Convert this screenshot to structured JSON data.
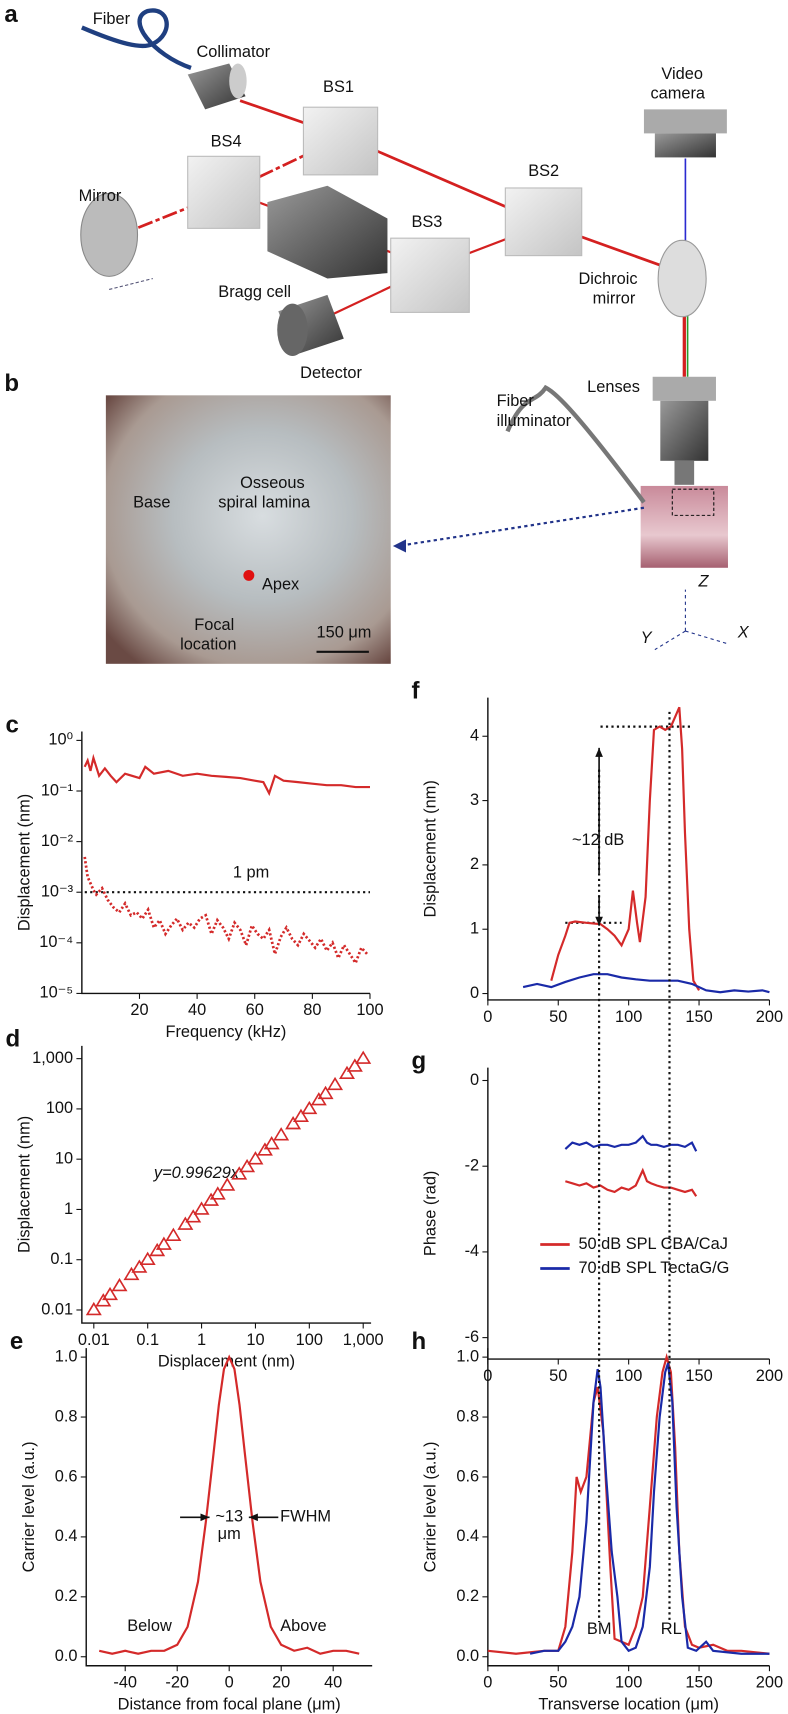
{
  "diagram": {
    "panels": [
      "a",
      "b"
    ],
    "labels": [
      "Fiber",
      "Collimator",
      "BS1",
      "BS4",
      "BS2",
      "BS3",
      "Mirror",
      "Bragg cell",
      "Detector",
      "Video",
      "camera",
      "Dichroic",
      "mirror",
      "Lenses",
      "Fiber",
      "illuminator",
      "Base",
      "Osseous",
      "spiral lamina",
      "Apex",
      "Focal",
      "location",
      "150 μm",
      "Z",
      "Y",
      "X"
    ]
  },
  "chart_data": [
    {
      "panel": "c",
      "type": "line",
      "xlabel": "Frequency (kHz)",
      "ylabel": "Displacement (nm)",
      "ylog": true,
      "xlim": [
        0,
        100
      ],
      "ylim": [
        1e-05,
        1.5
      ],
      "xticks": [
        20,
        40,
        60,
        80,
        100
      ],
      "yticks": [
        {
          "value": 1,
          "label": "10⁰"
        },
        {
          "value": 0.1,
          "label": "10⁻¹"
        },
        {
          "value": 0.01,
          "label": "10⁻²"
        },
        {
          "value": 0.001,
          "label": "10⁻³"
        },
        {
          "value": 0.0001,
          "label": "10⁻⁴"
        },
        {
          "value": 1e-05,
          "label": "10⁻⁵"
        }
      ],
      "annotations": [
        "1 pm"
      ],
      "hlines": [
        0.001
      ],
      "series": [
        {
          "color": "#d42a2a",
          "dotted": false,
          "x": [
            1,
            2,
            3,
            4,
            5,
            6,
            8,
            10,
            12,
            15,
            20,
            22,
            25,
            30,
            35,
            40,
            45,
            50,
            55,
            60,
            63,
            65,
            67,
            70,
            75,
            80,
            85,
            90,
            95,
            100
          ],
          "values": [
            0.3,
            0.4,
            0.25,
            0.45,
            0.3,
            0.2,
            0.28,
            0.2,
            0.15,
            0.22,
            0.18,
            0.3,
            0.22,
            0.25,
            0.2,
            0.22,
            0.2,
            0.19,
            0.18,
            0.16,
            0.15,
            0.09,
            0.2,
            0.16,
            0.15,
            0.14,
            0.13,
            0.13,
            0.12,
            0.12
          ]
        },
        {
          "color": "#d42a2a",
          "dotted": true,
          "x": [
            1,
            2,
            3,
            4,
            5,
            7,
            9,
            11,
            13,
            15,
            17,
            19,
            21,
            23,
            25,
            27,
            29,
            31,
            33,
            35,
            37,
            39,
            41,
            43,
            45,
            47,
            49,
            51,
            53,
            55,
            57,
            59,
            61,
            63,
            65,
            67,
            69,
            71,
            73,
            75,
            77,
            79,
            81,
            83,
            85,
            87,
            89,
            91,
            93,
            95,
            97,
            99
          ],
          "values": [
            0.005,
            0.002,
            0.0015,
            0.0011,
            0.0009,
            0.0012,
            0.0007,
            0.0005,
            0.0004,
            0.0006,
            0.00035,
            0.0004,
            0.0003,
            0.00045,
            0.0002,
            0.00028,
            0.00015,
            0.00022,
            0.0003,
            0.00018,
            0.00025,
            0.0002,
            0.0003,
            0.00035,
            0.00015,
            0.00028,
            0.0002,
            0.00012,
            0.00025,
            0.00018,
            9e-05,
            0.00022,
            0.00015,
            0.00012,
            0.00018,
            6e-05,
            0.00013,
            0.0002,
            0.00012,
            9e-05,
            0.00015,
            0.00011,
            8e-05,
            0.00012,
            7e-05,
            0.0001,
            5e-05,
            9e-05,
            6e-05,
            4e-05,
            8e-05,
            6e-05
          ]
        }
      ]
    },
    {
      "panel": "d",
      "type": "scatter",
      "xlabel": "Displacement (nm)",
      "ylabel": "Displacement (nm)",
      "xlog": true,
      "ylog": true,
      "xlim": [
        0.006,
        1400
      ],
      "ylim": [
        0.0055,
        1800
      ],
      "xticks": [
        0.01,
        0.1,
        1,
        10,
        100,
        {
          "value": 1000,
          "label": "1,000"
        }
      ],
      "yticks": [
        {
          "value": 1000,
          "label": "1,000"
        },
        100,
        10,
        1,
        0.1,
        0.01
      ],
      "annotations": [
        "y=0.99629x"
      ],
      "series": [
        {
          "color": "#d42a2a",
          "marker": "triangle",
          "x": [
            0.01,
            0.015,
            0.02,
            0.03,
            0.05,
            0.07,
            0.1,
            0.15,
            0.2,
            0.3,
            0.5,
            0.7,
            1,
            1.5,
            2,
            3,
            5,
            7,
            10,
            15,
            20,
            30,
            50,
            70,
            100,
            150,
            200,
            300,
            500,
            700,
            1000
          ],
          "values": [
            0.00996,
            0.0149,
            0.0199,
            0.0299,
            0.0498,
            0.0697,
            0.0996,
            0.149,
            0.199,
            0.299,
            0.498,
            0.697,
            0.996,
            1.49,
            1.99,
            2.99,
            4.98,
            6.97,
            9.96,
            14.9,
            19.9,
            29.9,
            49.8,
            69.7,
            99.6,
            149,
            199,
            299,
            498,
            697,
            996
          ]
        }
      ]
    },
    {
      "panel": "e",
      "type": "line",
      "xlabel": "Distance from focal plane (μm)",
      "ylabel": "Carrier level (a.u.)",
      "xlim": [
        -55,
        55
      ],
      "ylim": [
        -0.03,
        1.03
      ],
      "xticks": [
        -40,
        -20,
        0,
        20,
        40
      ],
      "yticks": [
        {
          "value": 1,
          "label": "1.0"
        },
        0.8,
        0.6,
        0.4,
        0.2,
        {
          "value": 0,
          "label": "0.0"
        }
      ],
      "annotations": [
        "~13",
        "μm",
        "FWHM",
        "Below",
        "Above"
      ],
      "series": [
        {
          "color": "#d42a2a",
          "x": [
            -50,
            -45,
            -40,
            -35,
            -30,
            -25,
            -20,
            -16,
            -12,
            -9,
            -6,
            -4,
            -2,
            0,
            2,
            4,
            6,
            9,
            12,
            16,
            20,
            25,
            30,
            35,
            40,
            45,
            50
          ],
          "values": [
            0.02,
            0.01,
            0.02,
            0.01,
            0.02,
            0.02,
            0.04,
            0.1,
            0.25,
            0.45,
            0.68,
            0.84,
            0.96,
            1.0,
            0.96,
            0.84,
            0.68,
            0.45,
            0.25,
            0.1,
            0.04,
            0.02,
            0.03,
            0.01,
            0.02,
            0.02,
            0.01
          ]
        }
      ]
    },
    {
      "panel": "f",
      "type": "line",
      "ylabel": "Displacement (nm)",
      "xlim": [
        0,
        200
      ],
      "ylim": [
        -0.1,
        4.6
      ],
      "xticks": [
        0,
        50,
        100,
        150,
        200
      ],
      "yticks": [
        0,
        1,
        2,
        3,
        4
      ],
      "annotations": [
        "~12 dB"
      ],
      "hlines": [
        4.15,
        1.1
      ],
      "vlines": [
        79,
        129
      ],
      "series": [
        {
          "color": "#d42a2a",
          "x": [
            45,
            50,
            55,
            58,
            62,
            70,
            80,
            85,
            90,
            95,
            100,
            103,
            106,
            108,
            112,
            115,
            118,
            122,
            126,
            130,
            133,
            136,
            138,
            140,
            143,
            146,
            150
          ],
          "values": [
            0.2,
            0.6,
            0.9,
            1.1,
            1.12,
            1.1,
            1.08,
            1.0,
            0.9,
            0.75,
            1.0,
            1.6,
            1.1,
            0.8,
            1.5,
            3.0,
            4.1,
            4.15,
            4.1,
            4.15,
            4.3,
            4.45,
            3.8,
            2.5,
            1.0,
            0.2,
            0.05
          ]
        },
        {
          "color": "#1a2aa8",
          "x": [
            25,
            35,
            45,
            55,
            65,
            75,
            85,
            95,
            105,
            115,
            125,
            135,
            145,
            155,
            165,
            175,
            185,
            195,
            200
          ],
          "values": [
            0.1,
            0.15,
            0.1,
            0.18,
            0.25,
            0.3,
            0.3,
            0.25,
            0.22,
            0.2,
            0.2,
            0.2,
            0.15,
            0.05,
            0.02,
            0.05,
            0.03,
            0.05,
            0.02
          ]
        }
      ]
    },
    {
      "panel": "g",
      "type": "line",
      "ylabel": "Phase (rad)",
      "legend": "lower-center",
      "xlim": [
        0,
        200
      ],
      "ylim": [
        -6.5,
        0.3
      ],
      "xticks": [
        0,
        50,
        100,
        150,
        200
      ],
      "yticks": [
        0,
        -2,
        -4,
        -6
      ],
      "series": [
        {
          "name": "50 dB SPL CBA/CaJ",
          "color": "#d42a2a",
          "x": [
            55,
            60,
            65,
            70,
            75,
            80,
            85,
            90,
            95,
            100,
            105,
            110,
            113,
            116,
            120,
            125,
            130,
            135,
            140,
            145,
            148
          ],
          "values": [
            -2.35,
            -2.4,
            -2.45,
            -2.4,
            -2.5,
            -2.45,
            -2.55,
            -2.6,
            -2.5,
            -2.55,
            -2.45,
            -2.1,
            -2.35,
            -2.4,
            -2.45,
            -2.5,
            -2.5,
            -2.55,
            -2.6,
            -2.55,
            -2.7
          ]
        },
        {
          "name": "70 dB SPL TectaG/G",
          "color": "#1a2aa8",
          "x": [
            55,
            60,
            65,
            70,
            75,
            80,
            85,
            90,
            95,
            100,
            105,
            110,
            113,
            116,
            120,
            125,
            130,
            135,
            140,
            145,
            148
          ],
          "values": [
            -1.6,
            -1.45,
            -1.5,
            -1.45,
            -1.55,
            -1.5,
            -1.5,
            -1.55,
            -1.5,
            -1.5,
            -1.45,
            -1.3,
            -1.45,
            -1.5,
            -1.5,
            -1.55,
            -1.5,
            -1.5,
            -1.55,
            -1.45,
            -1.65
          ]
        }
      ]
    },
    {
      "panel": "h",
      "type": "line",
      "xlabel": "Transverse location (μm)",
      "ylabel": "Carrier level (a.u.)",
      "xlim": [
        0,
        200
      ],
      "ylim": [
        -0.03,
        1.03
      ],
      "xticks": [
        0,
        50,
        100,
        150,
        200
      ],
      "yticks": [
        {
          "value": 1,
          "label": "1.0"
        },
        0.8,
        0.6,
        0.4,
        0.2,
        {
          "value": 0,
          "label": "0.0"
        }
      ],
      "annotations": [
        "BM",
        "RL"
      ],
      "series": [
        {
          "color": "#d42a2a",
          "x": [
            0,
            20,
            40,
            50,
            55,
            60,
            63,
            66,
            70,
            75,
            78,
            82,
            87,
            90,
            95,
            100,
            105,
            110,
            115,
            120,
            124,
            127,
            130,
            133,
            136,
            140,
            145,
            150,
            160,
            170,
            180,
            200
          ],
          "values": [
            0.02,
            0.01,
            0.02,
            0.02,
            0.1,
            0.35,
            0.6,
            0.55,
            0.6,
            0.85,
            0.9,
            0.75,
            0.3,
            0.06,
            0.05,
            0.04,
            0.1,
            0.2,
            0.5,
            0.8,
            0.95,
            1.0,
            0.95,
            0.7,
            0.35,
            0.1,
            0.04,
            0.03,
            0.04,
            0.02,
            0.02,
            0.01
          ]
        },
        {
          "color": "#1a2aa8",
          "x": [
            30,
            40,
            50,
            55,
            60,
            65,
            70,
            75,
            78,
            80,
            84,
            88,
            92,
            95,
            100,
            105,
            110,
            115,
            118,
            122,
            126,
            128,
            131,
            134,
            138,
            142,
            148,
            155,
            160,
            180,
            200
          ],
          "values": [
            0.01,
            0.02,
            0.02,
            0.05,
            0.1,
            0.2,
            0.45,
            0.85,
            0.96,
            0.9,
            0.6,
            0.35,
            0.2,
            0.05,
            0.02,
            0.03,
            0.1,
            0.3,
            0.55,
            0.8,
            0.95,
            0.98,
            0.85,
            0.5,
            0.2,
            0.03,
            0.02,
            0.05,
            0.02,
            0.01,
            0.01
          ]
        }
      ]
    }
  ]
}
